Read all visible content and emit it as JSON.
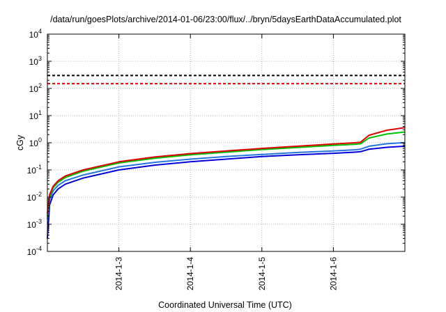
{
  "chart_data": {
    "type": "line",
    "title": "/data/run/goesPlots/archive/2014-01-06/23:00/flux/../bryn/5daysEarthDataAccumulated.plot",
    "xlabel": "Coordinated Universal Time (UTC)",
    "ylabel": "cGy",
    "yscale": "log",
    "ylim": [
      0.0001,
      10000
    ],
    "xlim": [
      2.0,
      7.0
    ],
    "grid": true,
    "x_ticks": [
      {
        "value": 3,
        "label": "2014-1-3"
      },
      {
        "value": 4,
        "label": "2014-1-4"
      },
      {
        "value": 5,
        "label": "2014-1-5"
      },
      {
        "value": 6,
        "label": "2014-1-6"
      }
    ],
    "y_ticks": [
      {
        "base": "10",
        "exp": "-4",
        "value": 0.0001
      },
      {
        "base": "10",
        "exp": "-3",
        "value": 0.001
      },
      {
        "base": "10",
        "exp": "-2",
        "value": 0.01
      },
      {
        "base": "10",
        "exp": "-1",
        "value": 0.1
      },
      {
        "base": "10",
        "exp": "0",
        "value": 1
      },
      {
        "base": "10",
        "exp": "1",
        "value": 10
      },
      {
        "base": "10",
        "exp": "2",
        "value": 100
      },
      {
        "base": "10",
        "exp": "3",
        "value": 1000
      },
      {
        "base": "10",
        "exp": "4",
        "value": 10000
      }
    ],
    "reference_lines": [
      {
        "value": 300,
        "color": "#000000",
        "dash": true
      },
      {
        "value": 150,
        "color": "#e00000",
        "dash": true
      }
    ],
    "series": [
      {
        "color": "#e00000",
        "x": [
          2.0,
          2.03,
          2.08,
          2.15,
          2.25,
          2.5,
          3.0,
          3.5,
          4.0,
          4.5,
          5.0,
          5.5,
          6.0,
          6.3,
          6.38,
          6.5,
          6.75,
          7.0
        ],
        "y": [
          0.0025,
          0.012,
          0.025,
          0.04,
          0.06,
          0.1,
          0.2,
          0.3,
          0.4,
          0.5,
          0.62,
          0.75,
          0.9,
          1.0,
          1.05,
          1.9,
          2.9,
          3.6
        ]
      },
      {
        "color": "#00c000",
        "x": [
          2.0,
          2.03,
          2.08,
          2.15,
          2.25,
          2.5,
          3.0,
          3.5,
          4.0,
          4.5,
          5.0,
          5.5,
          6.0,
          6.3,
          6.38,
          6.5,
          6.75,
          7.0
        ],
        "y": [
          0.002,
          0.01,
          0.022,
          0.035,
          0.053,
          0.09,
          0.18,
          0.27,
          0.36,
          0.45,
          0.56,
          0.67,
          0.8,
          0.88,
          0.92,
          1.5,
          2.1,
          2.5
        ]
      },
      {
        "color": "#2277dd",
        "x": [
          2.0,
          2.03,
          2.08,
          2.15,
          2.25,
          2.5,
          3.0,
          3.5,
          4.0,
          4.5,
          5.0,
          5.5,
          6.0,
          6.3,
          6.38,
          6.5,
          6.75,
          7.0
        ],
        "y": [
          0.0015,
          0.008,
          0.017,
          0.027,
          0.04,
          0.065,
          0.13,
          0.19,
          0.25,
          0.31,
          0.37,
          0.44,
          0.5,
          0.55,
          0.58,
          0.75,
          0.92,
          1.02
        ]
      },
      {
        "color": "#0000dd",
        "x": [
          2.0,
          2.03,
          2.08,
          2.15,
          2.25,
          2.5,
          3.0,
          3.5,
          4.0,
          4.5,
          5.0,
          5.5,
          6.0,
          6.3,
          6.38,
          6.5,
          6.75,
          7.0
        ],
        "y": [
          0.0003,
          0.005,
          0.012,
          0.02,
          0.03,
          0.05,
          0.1,
          0.15,
          0.2,
          0.25,
          0.31,
          0.36,
          0.41,
          0.45,
          0.47,
          0.58,
          0.68,
          0.75
        ]
      }
    ]
  }
}
